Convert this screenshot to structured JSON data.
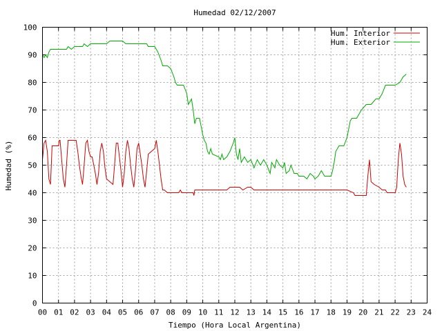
{
  "chart_data": {
    "type": "line",
    "title": "Humedad 02/12/2007",
    "xlabel": "Tiempo (Hora Local Argentina)",
    "ylabel": "Humedad (%)",
    "xlim": [
      0,
      24
    ],
    "ylim": [
      0,
      100
    ],
    "x_ticks": [
      "00",
      "01",
      "02",
      "03",
      "04",
      "05",
      "06",
      "07",
      "08",
      "09",
      "10",
      "11",
      "12",
      "13",
      "14",
      "15",
      "16",
      "17",
      "18",
      "19",
      "20",
      "21",
      "22",
      "23",
      "24"
    ],
    "y_ticks": [
      0,
      10,
      20,
      30,
      40,
      50,
      60,
      70,
      80,
      90,
      100
    ],
    "grid": true,
    "legend_position": "top-right",
    "series": [
      {
        "name": "Hum. Interior",
        "color": "#cc0000",
        "points": [
          [
            0.0,
            52
          ],
          [
            0.1,
            58
          ],
          [
            0.2,
            59
          ],
          [
            0.3,
            55
          ],
          [
            0.4,
            45
          ],
          [
            0.5,
            43
          ],
          [
            0.55,
            50
          ],
          [
            0.6,
            57
          ],
          [
            0.8,
            57
          ],
          [
            1.0,
            57
          ],
          [
            1.05,
            59
          ],
          [
            1.1,
            59
          ],
          [
            1.2,
            52
          ],
          [
            1.3,
            45
          ],
          [
            1.4,
            42
          ],
          [
            1.5,
            50
          ],
          [
            1.6,
            59
          ],
          [
            1.8,
            59
          ],
          [
            2.0,
            59
          ],
          [
            2.1,
            59
          ],
          [
            2.2,
            55
          ],
          [
            2.3,
            50
          ],
          [
            2.4,
            46
          ],
          [
            2.5,
            43
          ],
          [
            2.6,
            50
          ],
          [
            2.7,
            58
          ],
          [
            2.8,
            59
          ],
          [
            2.9,
            55
          ],
          [
            3.0,
            53
          ],
          [
            3.1,
            53
          ],
          [
            3.2,
            50
          ],
          [
            3.3,
            47
          ],
          [
            3.4,
            43
          ],
          [
            3.5,
            47
          ],
          [
            3.6,
            55
          ],
          [
            3.7,
            58
          ],
          [
            3.8,
            55
          ],
          [
            3.9,
            49
          ],
          [
            4.0,
            45
          ],
          [
            4.2,
            44
          ],
          [
            4.4,
            43
          ],
          [
            4.5,
            50
          ],
          [
            4.6,
            58
          ],
          [
            4.7,
            58
          ],
          [
            4.8,
            53
          ],
          [
            4.9,
            48
          ],
          [
            5.0,
            42
          ],
          [
            5.1,
            47
          ],
          [
            5.2,
            55
          ],
          [
            5.3,
            59
          ],
          [
            5.4,
            56
          ],
          [
            5.5,
            50
          ],
          [
            5.6,
            45
          ],
          [
            5.7,
            42
          ],
          [
            5.8,
            48
          ],
          [
            5.9,
            56
          ],
          [
            6.0,
            58
          ],
          [
            6.1,
            54
          ],
          [
            6.2,
            50
          ],
          [
            6.3,
            45
          ],
          [
            6.4,
            42
          ],
          [
            6.5,
            48
          ],
          [
            6.6,
            54
          ],
          [
            6.8,
            55
          ],
          [
            7.0,
            56
          ],
          [
            7.1,
            59
          ],
          [
            7.2,
            55
          ],
          [
            7.3,
            50
          ],
          [
            7.4,
            45
          ],
          [
            7.5,
            41
          ],
          [
            7.6,
            41
          ],
          [
            7.8,
            40
          ],
          [
            8.0,
            40
          ],
          [
            8.5,
            40
          ],
          [
            8.6,
            41
          ],
          [
            8.7,
            40
          ],
          [
            9.0,
            40
          ],
          [
            9.4,
            40
          ],
          [
            9.45,
            39
          ],
          [
            9.5,
            41
          ],
          [
            10.0,
            41
          ],
          [
            11.0,
            41
          ],
          [
            11.5,
            41
          ],
          [
            11.7,
            42
          ],
          [
            12.0,
            42
          ],
          [
            12.3,
            42
          ],
          [
            12.5,
            41
          ],
          [
            12.8,
            42
          ],
          [
            13.0,
            42
          ],
          [
            13.2,
            41
          ],
          [
            14.0,
            41
          ],
          [
            15.0,
            41
          ],
          [
            16.0,
            41
          ],
          [
            17.0,
            41
          ],
          [
            17.5,
            41
          ],
          [
            18.0,
            41
          ],
          [
            18.5,
            41
          ],
          [
            19.0,
            41
          ],
          [
            19.4,
            40
          ],
          [
            19.5,
            39
          ],
          [
            20.0,
            39
          ],
          [
            20.2,
            39
          ],
          [
            20.3,
            46
          ],
          [
            20.4,
            52
          ],
          [
            20.5,
            44
          ],
          [
            20.7,
            43
          ],
          [
            21.0,
            42
          ],
          [
            21.2,
            41
          ],
          [
            21.4,
            41
          ],
          [
            21.5,
            40
          ],
          [
            22.0,
            40
          ],
          [
            22.1,
            42
          ],
          [
            22.2,
            52
          ],
          [
            22.3,
            58
          ],
          [
            22.4,
            54
          ],
          [
            22.5,
            46
          ],
          [
            22.6,
            43
          ],
          [
            22.7,
            42
          ]
        ]
      },
      {
        "name": "Hum. Exterior",
        "color": "#00aa00",
        "points": [
          [
            0.0,
            90
          ],
          [
            0.1,
            89
          ],
          [
            0.2,
            90
          ],
          [
            0.3,
            89
          ],
          [
            0.4,
            91
          ],
          [
            0.5,
            92
          ],
          [
            0.8,
            92
          ],
          [
            1.0,
            92
          ],
          [
            1.5,
            92
          ],
          [
            1.6,
            93
          ],
          [
            1.8,
            92
          ],
          [
            2.0,
            93
          ],
          [
            2.5,
            93
          ],
          [
            2.6,
            94
          ],
          [
            2.8,
            93
          ],
          [
            3.0,
            94
          ],
          [
            3.5,
            94
          ],
          [
            4.0,
            94
          ],
          [
            4.2,
            95
          ],
          [
            5.0,
            95
          ],
          [
            5.2,
            94
          ],
          [
            6.0,
            94
          ],
          [
            6.5,
            94
          ],
          [
            6.6,
            93
          ],
          [
            7.0,
            93
          ],
          [
            7.2,
            91
          ],
          [
            7.4,
            88
          ],
          [
            7.5,
            86
          ],
          [
            7.6,
            86
          ],
          [
            7.8,
            86
          ],
          [
            8.0,
            85
          ],
          [
            8.2,
            82
          ],
          [
            8.3,
            80
          ],
          [
            8.4,
            79
          ],
          [
            8.8,
            79
          ],
          [
            9.0,
            76
          ],
          [
            9.1,
            72
          ],
          [
            9.3,
            74
          ],
          [
            9.4,
            70
          ],
          [
            9.5,
            65
          ],
          [
            9.6,
            67
          ],
          [
            9.8,
            67
          ],
          [
            9.9,
            64
          ],
          [
            10.0,
            61
          ],
          [
            10.1,
            59
          ],
          [
            10.2,
            58
          ],
          [
            10.3,
            55
          ],
          [
            10.4,
            54
          ],
          [
            10.5,
            56
          ],
          [
            10.6,
            54
          ],
          [
            11.0,
            53
          ],
          [
            11.1,
            52
          ],
          [
            11.2,
            54
          ],
          [
            11.3,
            52
          ],
          [
            11.5,
            53
          ],
          [
            11.7,
            55
          ],
          [
            11.9,
            58
          ],
          [
            12.0,
            60
          ],
          [
            12.1,
            54
          ],
          [
            12.2,
            52
          ],
          [
            12.3,
            56
          ],
          [
            12.4,
            51
          ],
          [
            12.6,
            53
          ],
          [
            12.8,
            51
          ],
          [
            13.0,
            52
          ],
          [
            13.2,
            49
          ],
          [
            13.4,
            52
          ],
          [
            13.6,
            50
          ],
          [
            13.8,
            52
          ],
          [
            14.0,
            50
          ],
          [
            14.2,
            47
          ],
          [
            14.3,
            51
          ],
          [
            14.5,
            49
          ],
          [
            14.6,
            52
          ],
          [
            14.8,
            50
          ],
          [
            15.0,
            49
          ],
          [
            15.1,
            51
          ],
          [
            15.2,
            47
          ],
          [
            15.4,
            48
          ],
          [
            15.5,
            50
          ],
          [
            15.7,
            47
          ],
          [
            15.9,
            47
          ],
          [
            16.0,
            46
          ],
          [
            16.3,
            46
          ],
          [
            16.5,
            45
          ],
          [
            16.7,
            47
          ],
          [
            16.9,
            46
          ],
          [
            17.0,
            45
          ],
          [
            17.2,
            46
          ],
          [
            17.4,
            48
          ],
          [
            17.6,
            46
          ],
          [
            17.8,
            46
          ],
          [
            18.0,
            46
          ],
          [
            18.1,
            48
          ],
          [
            18.2,
            51
          ],
          [
            18.3,
            55
          ],
          [
            18.5,
            57
          ],
          [
            18.8,
            57
          ],
          [
            19.0,
            60
          ],
          [
            19.2,
            66
          ],
          [
            19.3,
            67
          ],
          [
            19.6,
            67
          ],
          [
            19.9,
            70
          ],
          [
            20.2,
            72
          ],
          [
            20.5,
            72
          ],
          [
            20.8,
            74
          ],
          [
            21.0,
            74
          ],
          [
            21.2,
            76
          ],
          [
            21.4,
            79
          ],
          [
            21.8,
            79
          ],
          [
            22.0,
            79
          ],
          [
            22.3,
            80
          ],
          [
            22.5,
            82
          ],
          [
            22.7,
            83
          ]
        ]
      }
    ]
  }
}
